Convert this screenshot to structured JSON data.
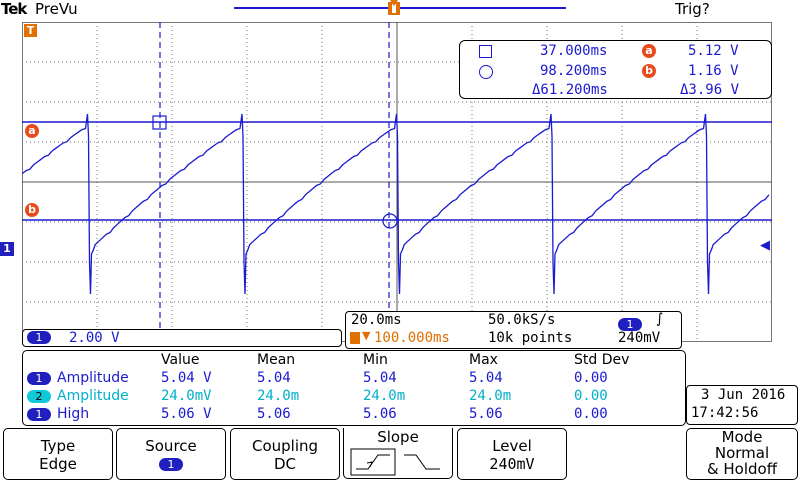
{
  "header": {
    "brand": "Tek",
    "mode": "PreVu",
    "trigger_status": "Trig?"
  },
  "markers": {
    "trigger_level": "T",
    "cursor_a": "a",
    "cursor_b": "b",
    "channel1": "1"
  },
  "cursors": {
    "time_a": "37.000ms",
    "time_b": "98.200ms",
    "delta_time": "Δ61.200ms",
    "volt_a": "5.12 V",
    "volt_b": "1.16 V",
    "delta_volt": "Δ3.96 V",
    "label_a": "a",
    "label_b": "b"
  },
  "channel_scale": {
    "channel": "1",
    "value": "2.00 V"
  },
  "acquisition": {
    "timebase": "20.0ms",
    "sample_rate": "50.0kS/s",
    "trigger_position": "100.000ms",
    "record_length": "10k points",
    "trigger_channel": "1",
    "trigger_level": "240mV"
  },
  "measurements": {
    "headers": [
      "Value",
      "Mean",
      "Min",
      "Max",
      "Std Dev"
    ],
    "rows": [
      {
        "channel": "1",
        "name": "Amplitude",
        "value": "5.04 V",
        "mean": "5.04",
        "min": "5.04",
        "max": "5.04",
        "std": "0.00",
        "color": "#1a1ad0"
      },
      {
        "channel": "2",
        "name": "Amplitude",
        "value": "24.0mV",
        "mean": "24.0m",
        "min": "24.0m",
        "max": "24.0m",
        "std": "0.00",
        "color": "#00b0c8"
      },
      {
        "channel": "1",
        "name": "High",
        "value": "5.06 V",
        "mean": "5.06",
        "min": "5.06",
        "max": "5.06",
        "std": "0.00",
        "color": "#1a1ad0"
      }
    ]
  },
  "datetime": {
    "date": "3 Jun 2016",
    "time": "17:42:56"
  },
  "menu": {
    "type_title": "Type",
    "type_value": "Edge",
    "source_title": "Source",
    "source_value": "1",
    "coupling_title": "Coupling",
    "coupling_value": "DC",
    "slope_title": "Slope",
    "level_title": "Level",
    "level_value": "240mV",
    "mode_title": "Mode",
    "mode_value1": "Normal",
    "mode_value2": "& Holdoff"
  },
  "colors": {
    "trace": "#1a1ad0",
    "cursor": "#1a1ad0",
    "accent": "#e07000",
    "grid": "#6a6a6a"
  }
}
